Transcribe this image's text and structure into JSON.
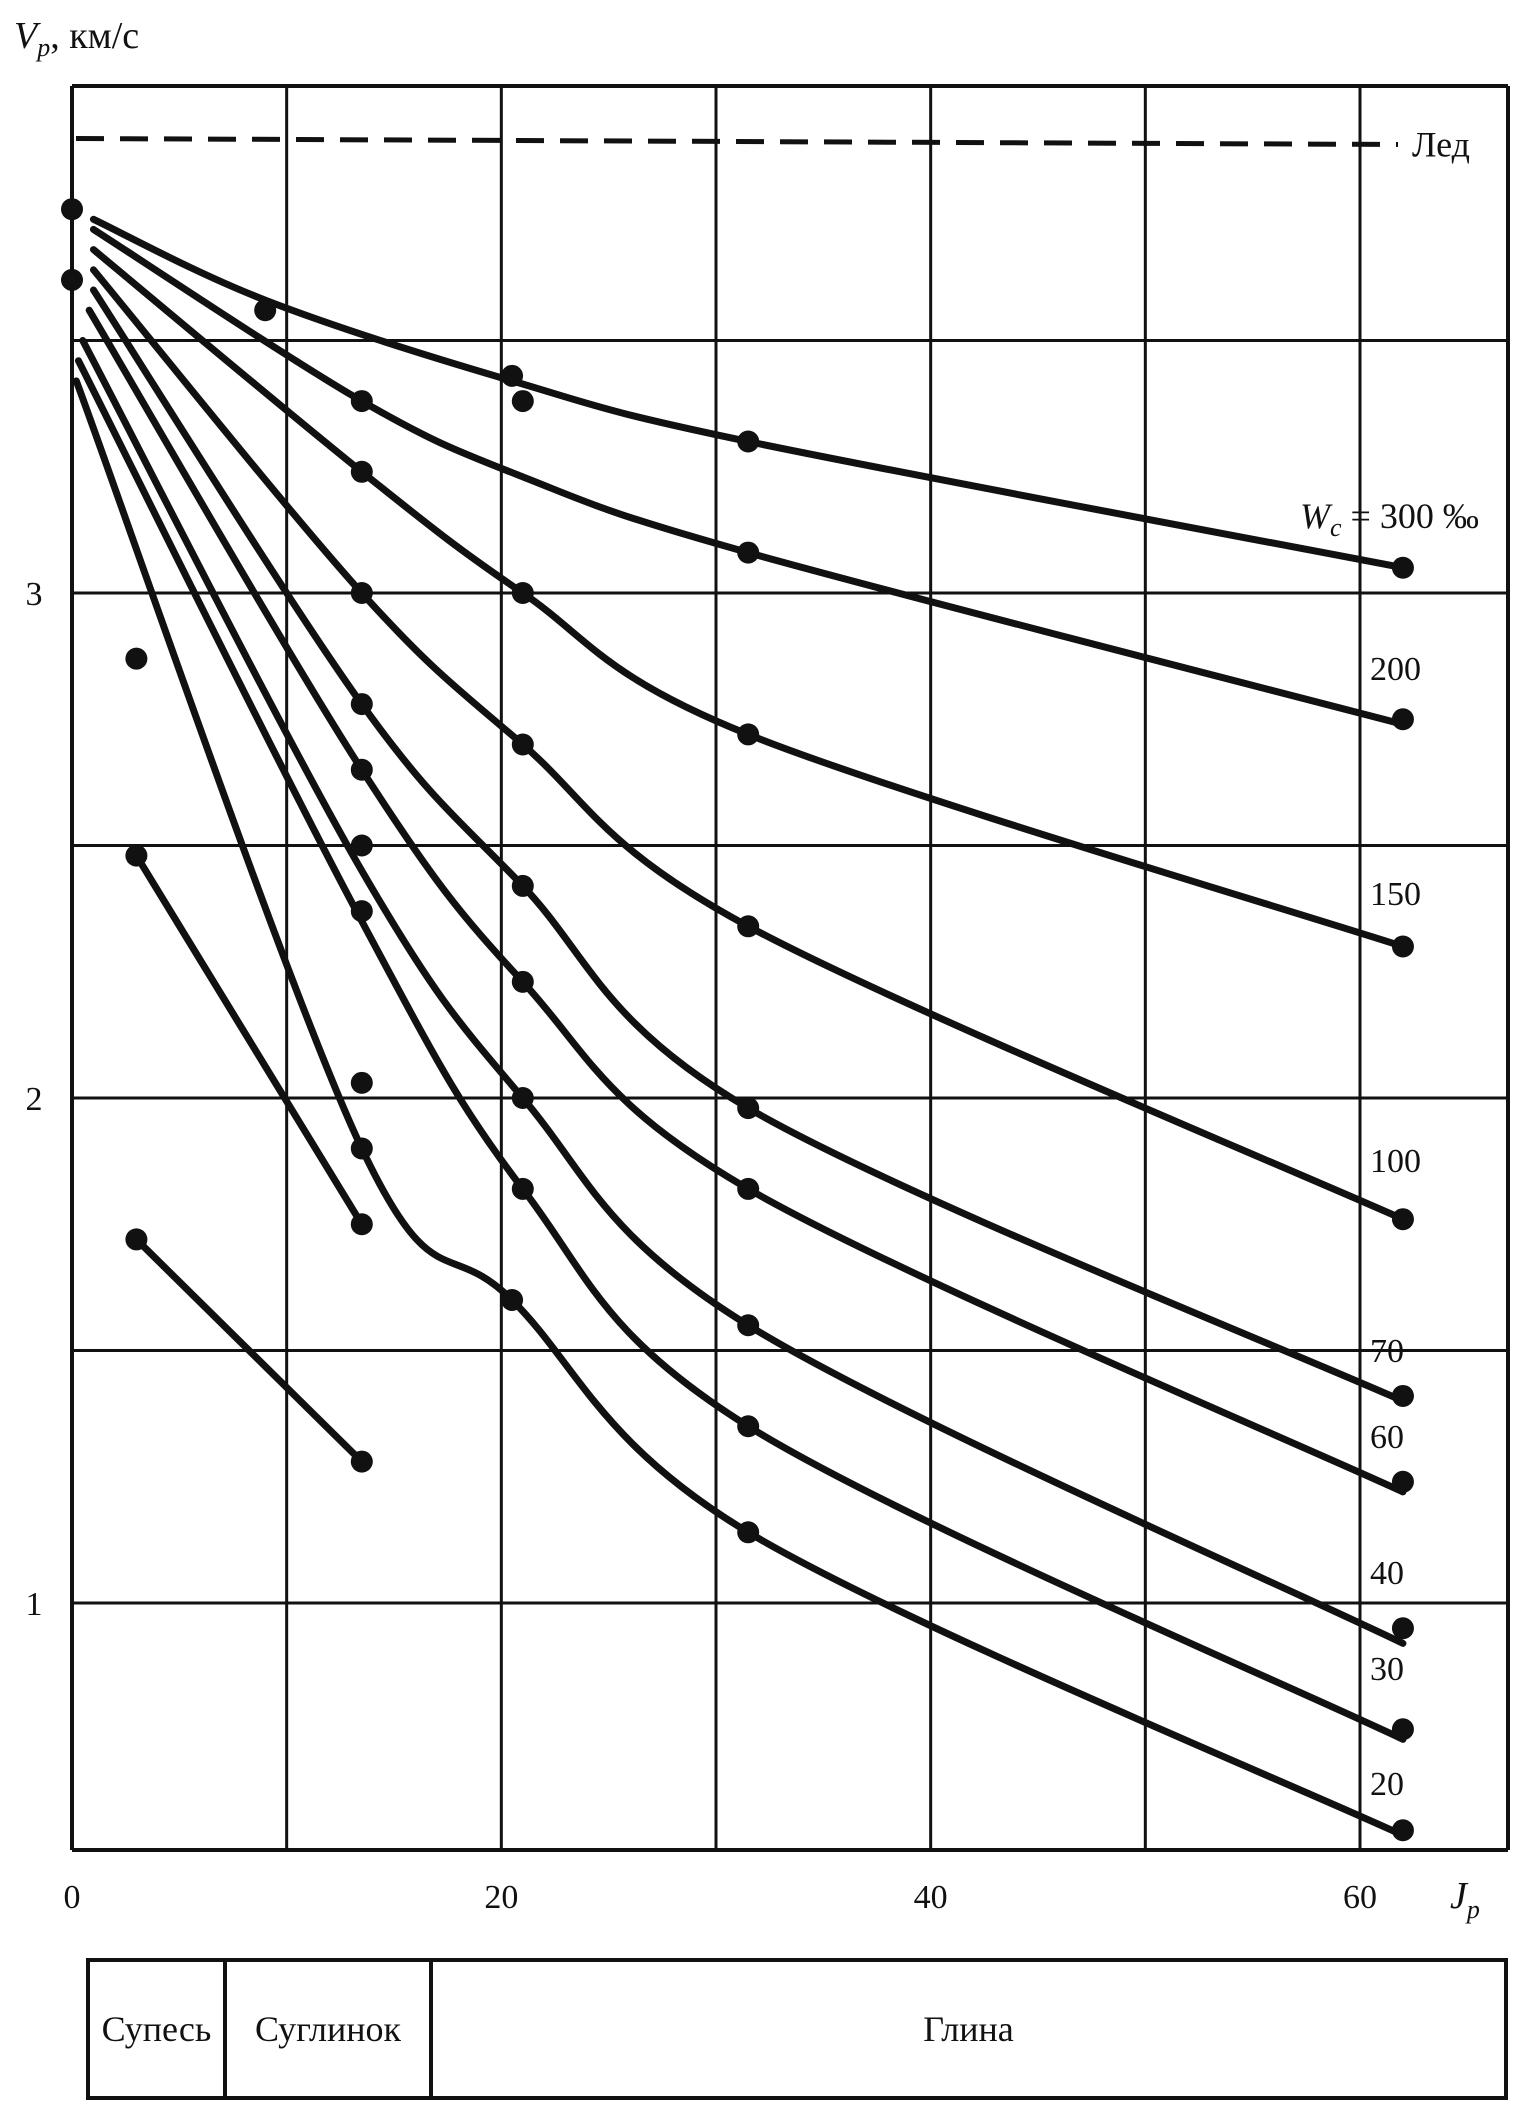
{
  "chart_data": {
    "type": "line",
    "ylabel_symbol": "V",
    "ylabel_sub": "p",
    "ylabel_unit": ", км/с",
    "xlabel_symbol": "J",
    "xlabel_sub": "p",
    "xlim": [
      0,
      68
    ],
    "ylim": [
      0.5,
      4.2
    ],
    "x_ticks": [
      0,
      20,
      40,
      60
    ],
    "y_ticks": [
      1,
      2,
      3
    ],
    "x_gridlines": [
      0,
      10,
      20,
      30,
      40,
      50,
      60
    ],
    "y_gridlines": [
      1,
      1.5,
      2,
      2.5,
      3,
      3.5
    ],
    "grid": true,
    "reference": {
      "name": "Лед",
      "y": 3.9
    },
    "series_prefix": "W",
    "series_prefix_sub": "c",
    "series_prefix_eq": " = ",
    "series_unit": " ‰",
    "series": [
      {
        "name": "300",
        "x": [
          1,
          9,
          20.5,
          31.5,
          62
        ],
        "y": [
          3.74,
          3.58,
          3.42,
          3.3,
          3.05
        ],
        "points_x": [
          0,
          9,
          20.5,
          31.5,
          62
        ],
        "points_y": [
          3.76,
          3.56,
          3.43,
          3.3,
          3.05
        ]
      },
      {
        "name": "200",
        "x": [
          1,
          13.5,
          21,
          31.5,
          62
        ],
        "y": [
          3.72,
          3.38,
          3.23,
          3.08,
          2.74
        ],
        "points_x": [
          0,
          13.5,
          21,
          31.5,
          62
        ],
        "points_y": [
          3.62,
          3.38,
          3.38,
          3.08,
          2.75
        ]
      },
      {
        "name": "150",
        "x": [
          1,
          13.5,
          21,
          31.5,
          62
        ],
        "y": [
          3.68,
          3.24,
          3.0,
          2.72,
          2.3
        ],
        "points_x": [
          13.5,
          21,
          31.5,
          62
        ],
        "points_y": [
          3.24,
          3.0,
          2.72,
          2.3
        ]
      },
      {
        "name": "100",
        "x": [
          1,
          13.5,
          21,
          31.5,
          62
        ],
        "y": [
          3.64,
          3.0,
          2.7,
          2.34,
          1.76
        ],
        "points_x": [
          13.5,
          21,
          31.5,
          62
        ],
        "points_y": [
          3.0,
          2.7,
          2.34,
          1.76
        ]
      },
      {
        "name": "70",
        "x": [
          1,
          13.5,
          21,
          31.5,
          62
        ],
        "y": [
          3.6,
          2.78,
          2.42,
          1.98,
          1.4
        ],
        "points_x": [
          13.5,
          21,
          31.5,
          62
        ],
        "points_y": [
          2.78,
          2.42,
          1.98,
          1.41
        ]
      },
      {
        "name": "60",
        "x": [
          0.8,
          13.5,
          21,
          31.5,
          62
        ],
        "y": [
          3.56,
          2.65,
          2.23,
          1.82,
          1.22
        ],
        "points_x": [
          13.5,
          21,
          31.5,
          62
        ],
        "points_y": [
          2.65,
          2.23,
          1.82,
          1.24
        ]
      },
      {
        "name": "40",
        "x": [
          0.5,
          13.5,
          21,
          31.5,
          62
        ],
        "y": [
          3.5,
          2.45,
          2.0,
          1.55,
          0.92
        ],
        "points_x": [
          13.5,
          21,
          31.5,
          62
        ],
        "points_y": [
          2.5,
          2.0,
          1.55,
          0.95
        ]
      },
      {
        "name": "30",
        "x": [
          0.3,
          13.5,
          21,
          31.5,
          62
        ],
        "y": [
          3.46,
          2.35,
          1.82,
          1.35,
          0.73
        ],
        "points_x": [
          13.5,
          21,
          31.5,
          62
        ],
        "points_y": [
          2.37,
          1.82,
          1.35,
          0.75
        ]
      },
      {
        "name": "20",
        "x": [
          0.2,
          13.5,
          20.5,
          31.5,
          62
        ],
        "y": [
          3.42,
          1.9,
          1.6,
          1.14,
          0.54
        ],
        "points_x": [
          13.5,
          20.5,
          31.5,
          62
        ],
        "points_y": [
          1.9,
          1.6,
          1.14,
          0.55
        ]
      }
    ],
    "extra_series": [
      {
        "x": [
          3,
          13.5
        ],
        "y": [
          2.48,
          1.75
        ],
        "points_x": [
          3,
          13.5
        ],
        "points_y": [
          2.48,
          1.75
        ]
      },
      {
        "x": [
          3,
          13.5
        ],
        "y": [
          1.72,
          1.28
        ],
        "points_x": [
          3,
          13.5
        ],
        "points_y": [
          1.72,
          1.28
        ]
      },
      {
        "x": [
          3
        ],
        "y": [
          2.87
        ],
        "points_x": [
          3
        ],
        "points_y": [
          2.87
        ]
      },
      {
        "x": [
          13.5
        ],
        "y": [
          2.03
        ],
        "points_x": [
          13.5
        ],
        "points_y": [
          2.03
        ]
      }
    ],
    "soil_classes": [
      "Супесь",
      "Суглинок",
      "Глина"
    ]
  }
}
